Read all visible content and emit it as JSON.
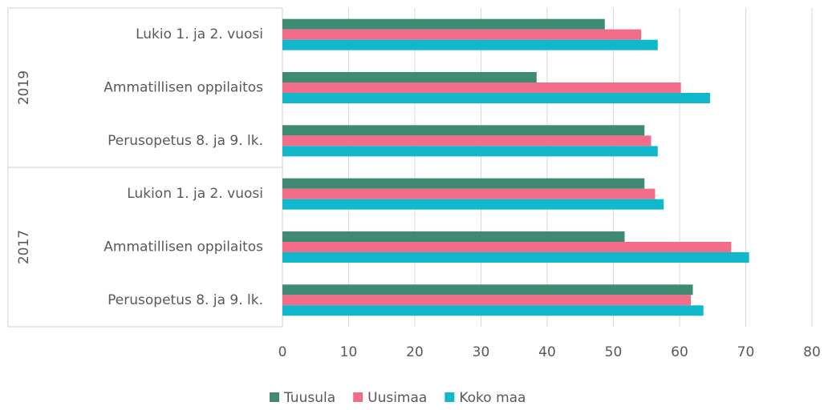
{
  "chart_data": {
    "type": "bar",
    "orientation": "horizontal",
    "groups": [
      {
        "name": "2019",
        "categories": [
          "Lukio 1. ja 2. vuosi",
          "Ammatillisen oppilaitos",
          "Perusopetus 8. ja 9. lk."
        ]
      },
      {
        "name": "2017",
        "categories": [
          "Lukion 1. ja 2. vuosi",
          "Ammatillisen oppilaitos",
          "Perusopetus 8. ja 9. lk."
        ]
      }
    ],
    "series": [
      {
        "name": "Tuusula",
        "color": "#3e8a72",
        "values": [
          48.7,
          38.4,
          54.7,
          54.7,
          51.7,
          62.0
        ]
      },
      {
        "name": "Uusimaa",
        "color": "#f26d8a",
        "values": [
          54.2,
          60.2,
          55.7,
          56.3,
          67.8,
          61.7
        ]
      },
      {
        "name": "Koko maa",
        "color": "#11b8cc",
        "values": [
          56.7,
          64.6,
          56.7,
          57.6,
          70.5,
          63.6
        ]
      }
    ],
    "xlim": [
      0,
      80
    ],
    "xticks": [
      0,
      10,
      20,
      30,
      40,
      50,
      60,
      70,
      80
    ],
    "grid": true,
    "legend": "bottom"
  }
}
